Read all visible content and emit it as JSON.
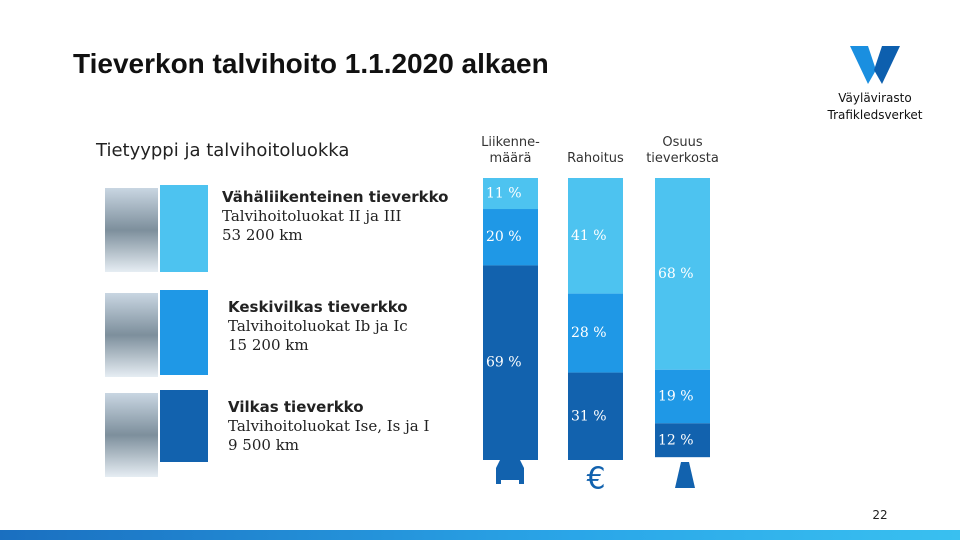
{
  "title": "Tieverkon talvihoito 1.1.2020 alkaen",
  "logo": {
    "name": "Väylävirasto",
    "name_sv": "Trafikledsverket"
  },
  "page_number": "22",
  "chart_data": {
    "type": "stacked_bar",
    "legend_title": "Tietyyppi ja talvihoitoluokka",
    "categories": [
      "Liikenne-määrä",
      "Rahoitus",
      "Osuus tieverkosta"
    ],
    "series": [
      {
        "name": "Vähäliikenteinen tieverkko",
        "classes": "Talvihoitoluokat II ja III",
        "length": "53 200 km",
        "color": "#4dc3f0",
        "values": [
          11,
          41,
          68
        ],
        "value_labels": [
          "11 %",
          "41 %",
          "68 %"
        ]
      },
      {
        "name": "Keskivilkas tieverkko",
        "classes": "Talvihoitoluokat Ib ja Ic",
        "length": "15 200 km",
        "color": "#1f98e6",
        "values": [
          20,
          28,
          19
        ],
        "value_labels": [
          "20 %",
          "28 %",
          "19 %"
        ]
      },
      {
        "name": "Vilkas tieverkko",
        "classes": "Talvihoitoluokat Ise, Is ja I",
        "length": "9 500 km",
        "color": "#1262ae",
        "values": [
          69,
          31,
          12
        ],
        "value_labels": [
          "69 %",
          "31 %",
          "12 %"
        ]
      }
    ]
  }
}
